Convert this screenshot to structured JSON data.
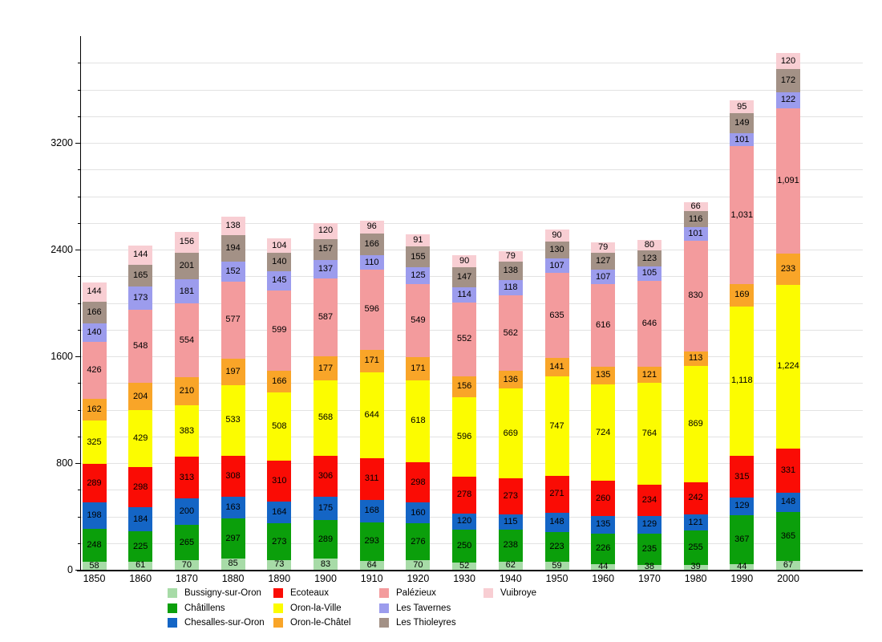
{
  "chart_data": {
    "type": "bar",
    "stacked": true,
    "title": "",
    "xlabel": "",
    "ylabel": "",
    "ylim": [
      0,
      4000
    ],
    "y_major_ticks": [
      "0",
      "800",
      "1600",
      "2400",
      "3200"
    ],
    "y_major_values": [
      0,
      800,
      1600,
      2400,
      3200
    ],
    "y_minor_step": 200,
    "grid": true,
    "legend_position": "bottom",
    "categories": [
      "1850",
      "1860",
      "1870",
      "1880",
      "1890",
      "1900",
      "1910",
      "1920",
      "1930",
      "1940",
      "1950",
      "1960",
      "1970",
      "1980",
      "1990",
      "2000"
    ],
    "series": [
      {
        "name": "Bussigny-sur-Oron",
        "color": "#a7dba7",
        "values": [
          58,
          61,
          70,
          85,
          73,
          83,
          64,
          70,
          52,
          62,
          59,
          44,
          38,
          39,
          44,
          67
        ]
      },
      {
        "name": "Châtillens",
        "color": "#0b9f0b",
        "values": [
          248,
          225,
          265,
          297,
          273,
          289,
          293,
          276,
          250,
          238,
          223,
          226,
          235,
          255,
          367,
          365
        ]
      },
      {
        "name": "Chesalles-sur-Oron",
        "color": "#1465c5",
        "values": [
          198,
          184,
          200,
          163,
          164,
          175,
          168,
          160,
          120,
          115,
          148,
          135,
          129,
          121,
          129,
          148
        ]
      },
      {
        "name": "Ecoteaux",
        "color": "#fa0c05",
        "values": [
          289,
          298,
          313,
          308,
          310,
          306,
          311,
          298,
          278,
          273,
          271,
          260,
          234,
          242,
          315,
          331
        ]
      },
      {
        "name": "Oron-la-Ville",
        "color": "#fcfc00",
        "values": [
          325,
          429,
          383,
          533,
          508,
          568,
          644,
          618,
          596,
          669,
          747,
          724,
          764,
          869,
          1118,
          1224
        ]
      },
      {
        "name": "Oron-le-Châtel",
        "color": "#f9a528",
        "values": [
          162,
          204,
          210,
          197,
          166,
          177,
          171,
          171,
          156,
          136,
          141,
          135,
          121,
          113,
          169,
          233
        ]
      },
      {
        "name": "Palézieux",
        "color": "#f39b9d",
        "values": [
          426,
          548,
          554,
          577,
          599,
          587,
          596,
          549,
          552,
          562,
          635,
          616,
          646,
          830,
          1031,
          1091
        ]
      },
      {
        "name": "Les Tavernes",
        "color": "#9c9ced",
        "values": [
          140,
          173,
          181,
          152,
          145,
          137,
          110,
          125,
          114,
          118,
          107,
          107,
          105,
          101,
          101,
          122
        ]
      },
      {
        "name": "Les Thioleyres",
        "color": "#a39186",
        "values": [
          166,
          165,
          201,
          194,
          140,
          157,
          166,
          155,
          147,
          138,
          130,
          127,
          123,
          116,
          149,
          172
        ]
      },
      {
        "name": "Vuibroye",
        "color": "#f8ced3",
        "values": [
          144,
          144,
          156,
          138,
          104,
          120,
          96,
          91,
          90,
          79,
          90,
          79,
          80,
          66,
          95,
          120
        ]
      }
    ],
    "legend_columns": [
      [
        0,
        1,
        2
      ],
      [
        3,
        4,
        5
      ],
      [
        6,
        7,
        8
      ],
      [
        9
      ]
    ]
  }
}
